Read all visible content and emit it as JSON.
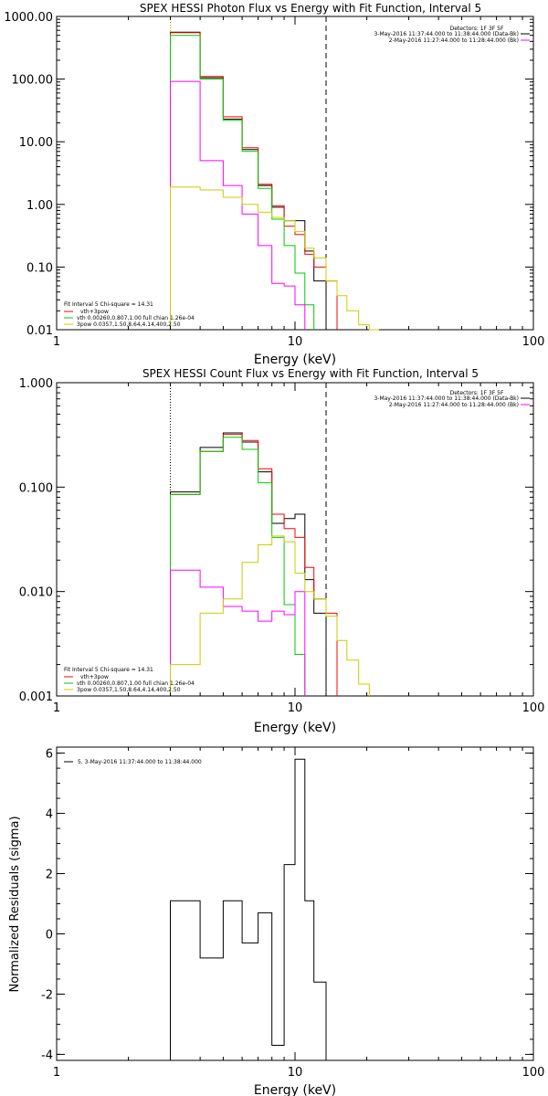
{
  "chart_data": [
    {
      "type": "line",
      "title": "SPEX HESSI Photon Flux vs Energy with Fit Function, Interval 5",
      "xlabel": "Energy (keV)",
      "ylabel": "",
      "xscale": "log",
      "yscale": "log",
      "xlim": [
        1,
        100
      ],
      "ylim": [
        0.01,
        1000
      ],
      "xticks": [
        {
          "v": 1,
          "label": "1"
        },
        {
          "v": 10,
          "label": "10"
        },
        {
          "v": 100,
          "label": "100"
        }
      ],
      "yticks": [
        {
          "v": 0.01,
          "label": "0.01"
        },
        {
          "v": 0.1,
          "label": "0.10"
        },
        {
          "v": 1,
          "label": "1.00"
        },
        {
          "v": 10,
          "label": "10.00"
        },
        {
          "v": 100,
          "label": "100.00"
        },
        {
          "v": 1000,
          "label": "1000.00"
        }
      ],
      "vlines": [
        {
          "x": 3.0,
          "style": "dotted",
          "color": "#cc9900"
        },
        {
          "x": 13.5,
          "style": "dashed",
          "color": "#000000"
        }
      ],
      "edges": [
        3.0,
        4.0,
        5.0,
        6.0,
        7.0,
        8.0,
        9.0,
        10.0,
        11.0,
        12.0,
        13.5,
        15.0,
        16.5,
        18.5,
        20.5,
        22.5
      ],
      "series": [
        {
          "color": "#000000",
          "values": [
            560,
            105,
            23,
            7.5,
            2.0,
            0.9,
            0.55,
            0.55,
            0.18,
            0.06,
            null,
            null,
            null,
            null,
            null
          ]
        },
        {
          "color": "#ff0000",
          "values": [
            550,
            110,
            25,
            8.0,
            2.1,
            0.95,
            0.45,
            0.33,
            0.16,
            0.1,
            0.06,
            null,
            null,
            null,
            null
          ]
        },
        {
          "color": "#00cc00",
          "values": [
            500,
            100,
            22,
            7.0,
            1.8,
            0.58,
            0.22,
            0.08,
            0.025,
            null,
            null,
            null,
            null,
            null,
            null
          ]
        },
        {
          "color": "#ff00ff",
          "values": [
            92,
            5.0,
            2.0,
            0.7,
            0.22,
            0.055,
            0.05,
            0.025,
            null,
            null,
            null,
            null,
            null,
            null,
            null
          ]
        },
        {
          "color": "#cccc00",
          "values": [
            1.9,
            1.7,
            1.3,
            1.0,
            0.75,
            0.62,
            0.55,
            0.37,
            0.2,
            0.14,
            0.06,
            0.035,
            0.02,
            0.012,
            0.01
          ]
        }
      ],
      "header": {
        "detectors": "Detectors: 1F 3F 5F",
        "lines": [
          {
            "text": "3-May-2016 11:37:44.000 to 11:38:44.000 (Data-Bk)",
            "color": "#000000"
          },
          {
            "text": "2-May-2016 11:27:44.000 to 11:28:44.000 (Bk)",
            "color": "#ff00ff"
          }
        ]
      },
      "fit_legend": {
        "title": "Fit Interval 5   Chi-square = 14.31",
        "items": [
          {
            "text": "vth+3pow",
            "color": "#ff0000"
          },
          {
            "text": "vth 0.00260,0.807,1.00   full chian 1.26e-04",
            "color": "#00cc00"
          },
          {
            "text": "3pow 0.0357,1.50,8.64,4.14,400,2.50",
            "color": "#cccc00"
          }
        ]
      }
    },
    {
      "type": "line",
      "title": "SPEX HESSI Count Flux vs Energy with Fit Function, Interval 5",
      "xlabel": "Energy (keV)",
      "ylabel": "",
      "xscale": "log",
      "yscale": "log",
      "xlim": [
        1,
        100
      ],
      "ylim": [
        0.001,
        1
      ],
      "xticks": [
        {
          "v": 1,
          "label": "1"
        },
        {
          "v": 10,
          "label": "10"
        },
        {
          "v": 100,
          "label": "100"
        }
      ],
      "yticks": [
        {
          "v": 0.001,
          "label": "0.001"
        },
        {
          "v": 0.01,
          "label": "0.010"
        },
        {
          "v": 0.1,
          "label": "0.100"
        },
        {
          "v": 1,
          "label": "1.000"
        }
      ],
      "vlines": [
        {
          "x": 3.0,
          "style": "dotted",
          "color": "#000000"
        },
        {
          "x": 13.5,
          "style": "dashed",
          "color": "#000000"
        }
      ],
      "edges": [
        3.0,
        4.0,
        5.0,
        6.0,
        7.0,
        8.0,
        9.0,
        10.0,
        11.0,
        12.0,
        13.5,
        15.0,
        16.5,
        18.5,
        20.5,
        22.5
      ],
      "series": [
        {
          "color": "#000000",
          "values": [
            0.09,
            0.24,
            0.33,
            0.27,
            0.14,
            0.045,
            0.05,
            0.055,
            0.013,
            0.0062,
            null,
            null,
            null,
            null,
            null
          ]
        },
        {
          "color": "#ff0000",
          "values": [
            0.085,
            0.22,
            0.32,
            0.28,
            0.15,
            0.055,
            0.04,
            0.033,
            0.017,
            0.0085,
            0.0062,
            null,
            null,
            null,
            null
          ]
        },
        {
          "color": "#00cc00",
          "values": [
            0.085,
            0.22,
            0.3,
            0.23,
            0.11,
            0.033,
            0.0075,
            0.0025,
            null,
            null,
            null,
            null,
            null,
            null,
            null
          ]
        },
        {
          "color": "#ff00ff",
          "values": [
            0.016,
            0.011,
            0.0072,
            0.0065,
            0.0052,
            0.0065,
            0.006,
            0.01,
            null,
            null,
            null,
            null,
            null,
            null,
            null
          ]
        },
        {
          "color": "#cccc00",
          "values": [
            0.002,
            0.0062,
            0.0085,
            0.019,
            0.028,
            0.034,
            0.03,
            0.015,
            0.01,
            0.0085,
            0.0058,
            0.0034,
            0.0022,
            0.0013,
            null
          ]
        }
      ],
      "header": {
        "detectors": "Detectors: 1F 3F 5F",
        "lines": [
          {
            "text": "3-May-2016 11:37:44.000 to 11:38:44.000 (Data-Bk)",
            "color": "#000000"
          },
          {
            "text": "2-May-2016 11:27:44.000 to 11:28:44.000 (Bk)",
            "color": "#ff00ff"
          }
        ]
      },
      "fit_legend": {
        "title": "Fit Interval 5   Chi-square = 14.31",
        "items": [
          {
            "text": "vth+3pow",
            "color": "#ff0000"
          },
          {
            "text": "vth 0.00260,0.807,1.00   full chian 1.26e-04",
            "color": "#00cc00"
          },
          {
            "text": "3pow 0.0357,1.50,8.64,4.14,400,2.50",
            "color": "#cccc00"
          }
        ]
      }
    },
    {
      "type": "line",
      "title": "",
      "xlabel": "Energy (keV)",
      "ylabel": "Normalized Residuals (sigma)",
      "xscale": "log",
      "yscale": "linear",
      "xlim": [
        1,
        100
      ],
      "ylim": [
        -4.2,
        6.2
      ],
      "xticks": [
        {
          "v": 1,
          "label": "1"
        },
        {
          "v": 10,
          "label": "10"
        },
        {
          "v": 100,
          "label": "100"
        }
      ],
      "yticks": [
        {
          "v": -4,
          "label": "-4"
        },
        {
          "v": -2,
          "label": "-2"
        },
        {
          "v": 0,
          "label": "0"
        },
        {
          "v": 2,
          "label": "2"
        },
        {
          "v": 4,
          "label": "4"
        },
        {
          "v": 6,
          "label": "6"
        }
      ],
      "edges": [
        3.0,
        4.0,
        5.0,
        6.0,
        7.0,
        8.0,
        9.0,
        10.0,
        11.0,
        12.0,
        13.5
      ],
      "series": [
        {
          "color": "#000000",
          "values": [
            1.1,
            -0.8,
            1.1,
            -0.3,
            0.7,
            -3.7,
            2.3,
            5.8,
            1.1,
            -1.6
          ]
        }
      ],
      "legend": {
        "text": "5.  3-May-2016 11:37:44.000 to 11:38:44.000",
        "color": "#000000"
      }
    }
  ]
}
